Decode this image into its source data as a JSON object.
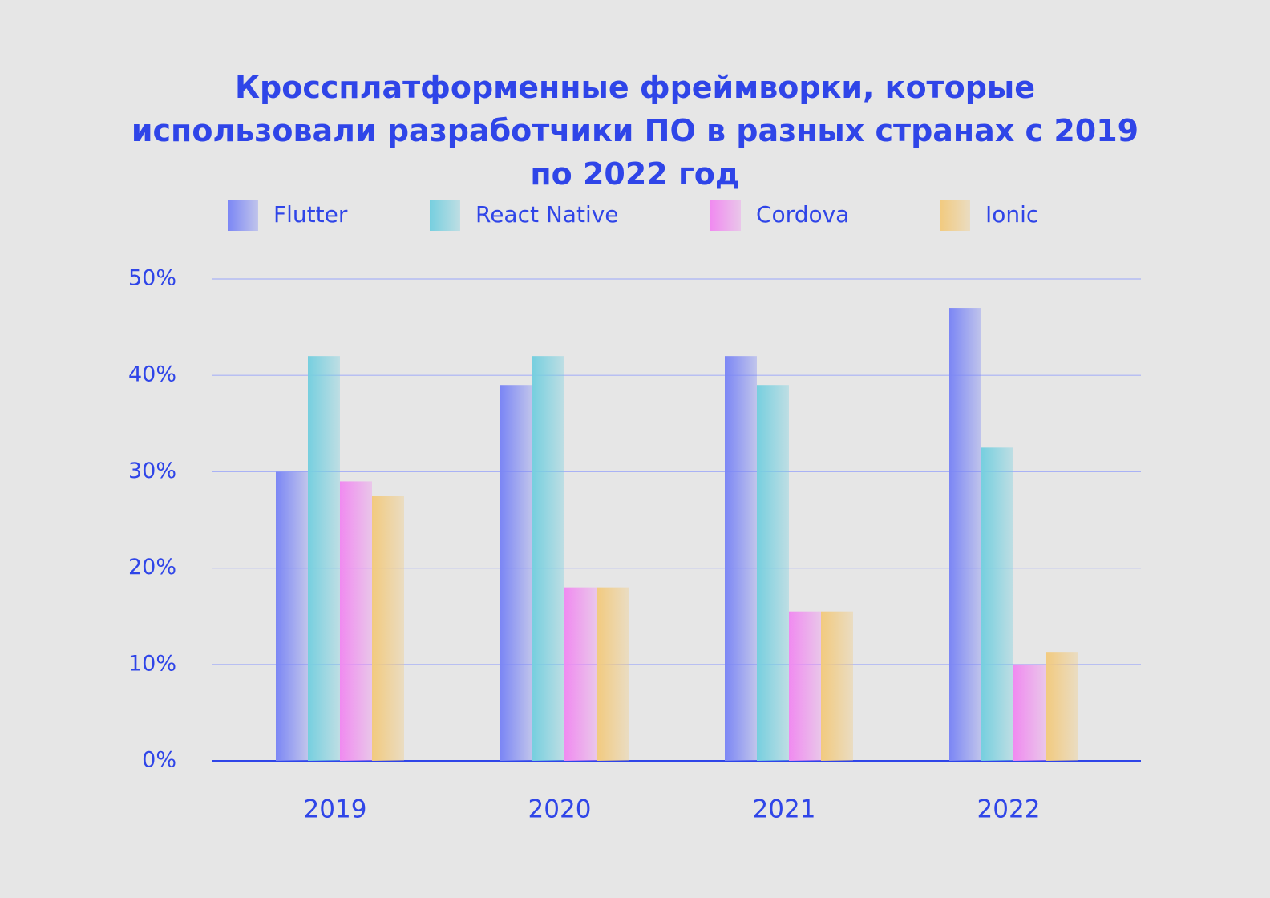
{
  "chart_data": {
    "type": "bar",
    "title": "Кроссплатформенные фреймворки, которые использовали разработчики ПО в разных странах с 2019 по 2022 год",
    "categories": [
      "2019",
      "2020",
      "2021",
      "2022"
    ],
    "series": [
      {
        "name": "Flutter",
        "color": "#7b86f5",
        "values": [
          30,
          39,
          42,
          47
        ]
      },
      {
        "name": "React Native",
        "color": "#76cfdf",
        "values": [
          42,
          42,
          39,
          32.5
        ]
      },
      {
        "name": "Cordova",
        "color": "#f08af0",
        "values": [
          29,
          18,
          15.5,
          10
        ]
      },
      {
        "name": "Ionic",
        "color": "#f2ca7e",
        "values": [
          27.5,
          18,
          15.5,
          11.3
        ]
      }
    ],
    "ylim": [
      0,
      50
    ],
    "yticks": [
      {
        "value": 0,
        "label": "0%"
      },
      {
        "value": 10,
        "label": "10%"
      },
      {
        "value": 20,
        "label": "20%"
      },
      {
        "value": 30,
        "label": "30%"
      },
      {
        "value": 40,
        "label": "40%"
      },
      {
        "value": 50,
        "label": "50%"
      }
    ],
    "grid": true
  }
}
